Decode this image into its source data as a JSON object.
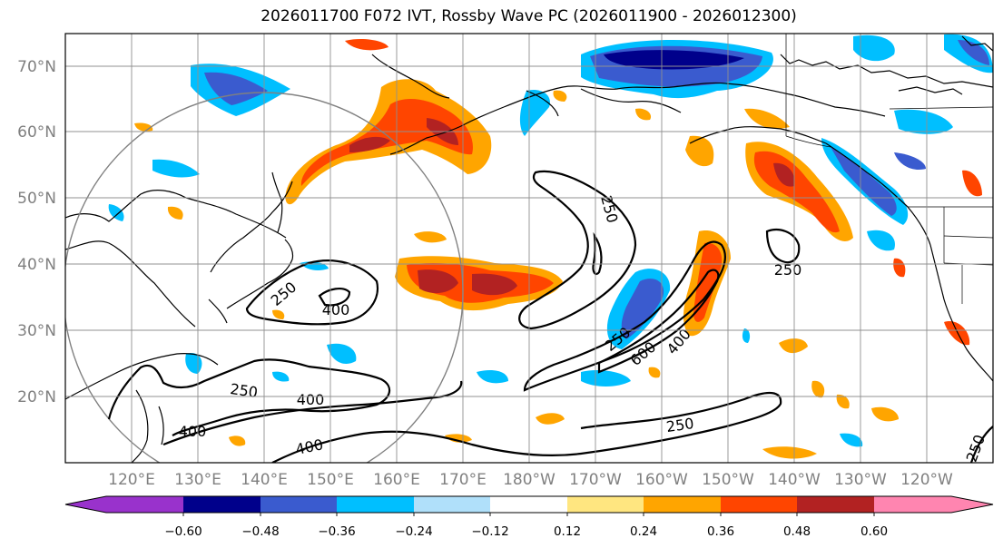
{
  "title": "2026011700 F072 IVT, Rossby Wave PC (2026011900 - 2026012300)",
  "lat_labels": [
    "70°N",
    "60°N",
    "50°N",
    "40°N",
    "30°N",
    "20°N"
  ],
  "lon_labels": [
    "120°E",
    "130°E",
    "140°E",
    "150°E",
    "160°E",
    "170°E",
    "180°W",
    "170°W",
    "160°W",
    "150°W",
    "140°W",
    "130°W",
    "120°W"
  ],
  "contour_labels": [
    "400",
    "250",
    "400",
    "250",
    "400",
    "400",
    "250",
    "250",
    "600",
    "400",
    "250",
    "250",
    "250"
  ],
  "colorbar": {
    "ticks": [
      "−0.60",
      "−0.48",
      "−0.36",
      "−0.24",
      "−0.12",
      "0.12",
      "0.24",
      "0.36",
      "0.48",
      "0.60"
    ],
    "colors": [
      "#9932cc",
      "#00008b",
      "#3a5bcf",
      "#00bfff",
      "#b0e0fa",
      "#ffffff",
      "#ffe680",
      "#ffa500",
      "#ff4500",
      "#b22222",
      "#ff85b0"
    ]
  }
}
